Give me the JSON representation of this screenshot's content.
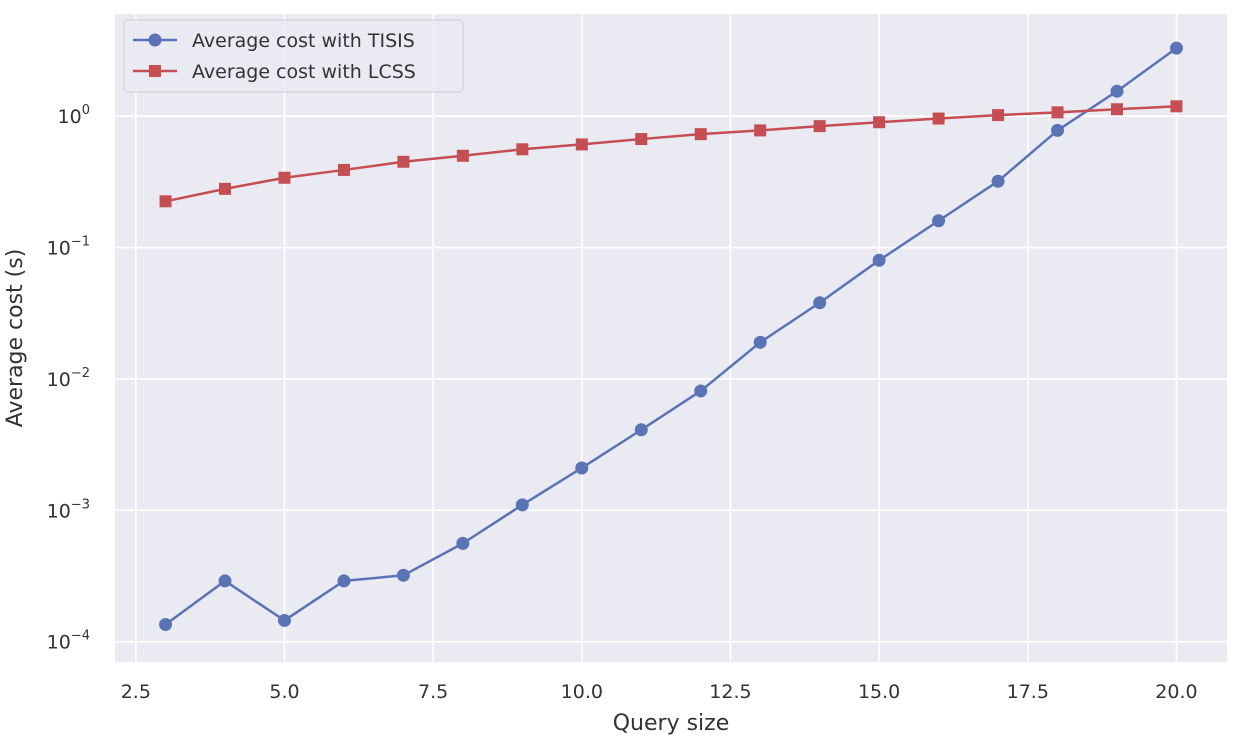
{
  "chart_data": {
    "type": "line",
    "title": "",
    "xlabel": "Query size",
    "ylabel": "Average cost (s)",
    "xscale": "linear",
    "yscale": "log",
    "xlim": [
      2.15,
      20.85
    ],
    "ylim": [
      7e-05,
      6.0
    ],
    "grid": true,
    "legend_position": "top-left",
    "x": [
      3,
      4,
      5,
      6,
      7,
      8,
      9,
      10,
      11,
      12,
      13,
      14,
      15,
      16,
      17,
      18,
      19,
      20
    ],
    "series": [
      {
        "name": "Average cost with TISIS",
        "color": "#5a73b5",
        "marker": "circle",
        "values": [
          0.000135,
          0.00029,
          0.000145,
          0.00029,
          0.00032,
          0.00056,
          0.0011,
          0.0021,
          0.0041,
          0.0081,
          0.019,
          0.038,
          0.08,
          0.16,
          0.32,
          0.78,
          1.55,
          3.3
        ]
      },
      {
        "name": "Average cost with LCSS",
        "color": "#c44e52",
        "marker": "square",
        "values": [
          0.225,
          0.28,
          0.34,
          0.39,
          0.45,
          0.5,
          0.56,
          0.61,
          0.67,
          0.73,
          0.78,
          0.84,
          0.9,
          0.96,
          1.02,
          1.07,
          1.13,
          1.19
        ]
      }
    ],
    "xticks": [
      {
        "value": 2.5,
        "label": "2.5"
      },
      {
        "value": 5.0,
        "label": "5.0"
      },
      {
        "value": 7.5,
        "label": "7.5"
      },
      {
        "value": 10.0,
        "label": "10.0"
      },
      {
        "value": 12.5,
        "label": "12.5"
      },
      {
        "value": 15.0,
        "label": "15.0"
      },
      {
        "value": 17.5,
        "label": "17.5"
      },
      {
        "value": 20.0,
        "label": "20.0"
      }
    ],
    "yticks": [
      {
        "value": 1,
        "base": "10",
        "exp": "0"
      },
      {
        "value": 0.1,
        "base": "10",
        "exp": "−1"
      },
      {
        "value": 0.01,
        "base": "10",
        "exp": "−2"
      },
      {
        "value": 0.001,
        "base": "10",
        "exp": "−3"
      },
      {
        "value": 0.0001,
        "base": "10",
        "exp": "−4"
      }
    ],
    "colors": {
      "plot_background": "#eaeaf2",
      "grid": "#ffffff",
      "text": "#333333"
    }
  }
}
